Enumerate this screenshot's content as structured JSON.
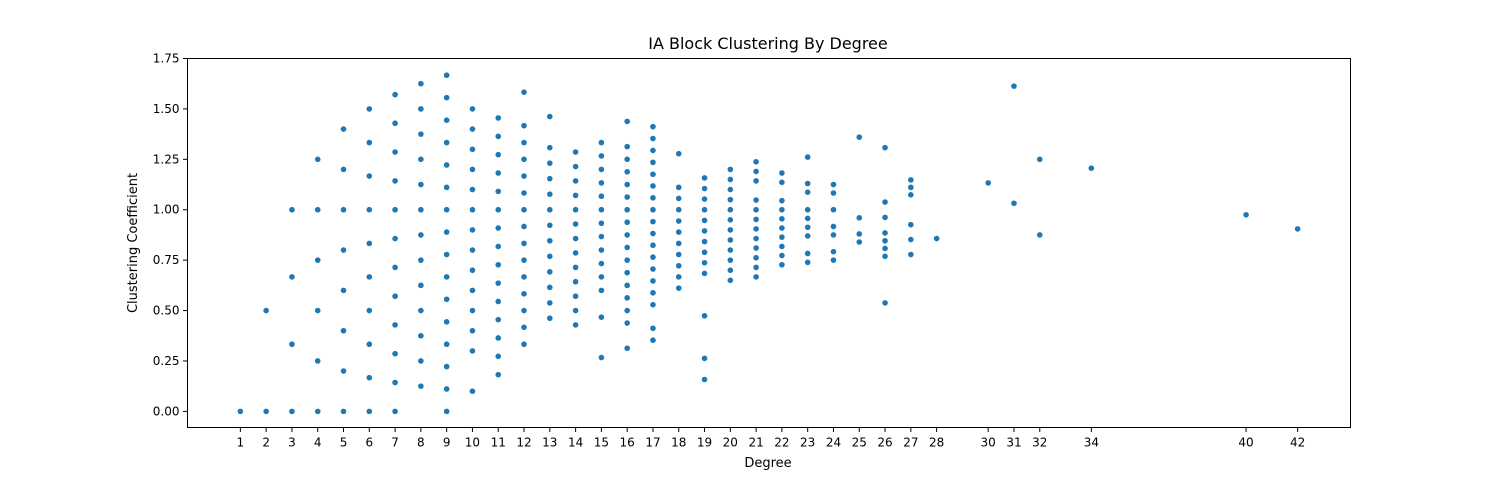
{
  "chart_data": {
    "type": "scatter",
    "title": "IA Block Clustering By Degree",
    "xlabel": "Degree",
    "ylabel": "Clustering Coefficient",
    "xlim": [
      -1.05,
      44.05
    ],
    "ylim": [
      -0.08,
      1.75
    ],
    "grid": false,
    "legend": "none",
    "color": "#1f77b4",
    "xticks": [
      "1",
      "2",
      "3",
      "4",
      "5",
      "6",
      "7",
      "8",
      "9",
      "10",
      "11",
      "12",
      "13",
      "14",
      "15",
      "16",
      "17",
      "18",
      "19",
      "20",
      "21",
      "22",
      "23",
      "24",
      "25",
      "26",
      "27",
      "28",
      "30",
      "31",
      "32",
      "34",
      "40",
      "42"
    ],
    "yticks": [
      "0.00",
      "0.25",
      "0.50",
      "0.75",
      "1.00",
      "1.25",
      "1.50",
      "1.75"
    ],
    "series": [
      {
        "points": [
          [
            1,
            0
          ],
          [
            2,
            0
          ],
          [
            2,
            0.5
          ],
          [
            3,
            0
          ],
          [
            3,
            0.333
          ],
          [
            3,
            0.667
          ],
          [
            3,
            1
          ],
          [
            4,
            0
          ],
          [
            4,
            0.25
          ],
          [
            4,
            0.5
          ],
          [
            4,
            0.75
          ],
          [
            4,
            1
          ],
          [
            4,
            1.25
          ],
          [
            5,
            0
          ],
          [
            5,
            0.2
          ],
          [
            5,
            0.4
          ],
          [
            5,
            0.6
          ],
          [
            5,
            0.8
          ],
          [
            5,
            1
          ],
          [
            5,
            1.2
          ],
          [
            5,
            1.4
          ],
          [
            6,
            0
          ],
          [
            6,
            0.167
          ],
          [
            6,
            0.333
          ],
          [
            6,
            0.5
          ],
          [
            6,
            0.667
          ],
          [
            6,
            0.833
          ],
          [
            6,
            1
          ],
          [
            6,
            1.167
          ],
          [
            6,
            1.333
          ],
          [
            6,
            1.5
          ],
          [
            7,
            0
          ],
          [
            7,
            0.143
          ],
          [
            7,
            0.286
          ],
          [
            7,
            0.429
          ],
          [
            7,
            0.571
          ],
          [
            7,
            0.714
          ],
          [
            7,
            0.857
          ],
          [
            7,
            1
          ],
          [
            7,
            1.143
          ],
          [
            7,
            1.286
          ],
          [
            7,
            1.429
          ],
          [
            7,
            1.571
          ],
          [
            8,
            0.125
          ],
          [
            8,
            0.25
          ],
          [
            8,
            0.375
          ],
          [
            8,
            0.5
          ],
          [
            8,
            0.625
          ],
          [
            8,
            0.75
          ],
          [
            8,
            0.875
          ],
          [
            8,
            1
          ],
          [
            8,
            1.125
          ],
          [
            8,
            1.25
          ],
          [
            8,
            1.375
          ],
          [
            8,
            1.5
          ],
          [
            8,
            1.625
          ],
          [
            9,
            0
          ],
          [
            9,
            0.111
          ],
          [
            9,
            0.222
          ],
          [
            9,
            0.333
          ],
          [
            9,
            0.444
          ],
          [
            9,
            0.556
          ],
          [
            9,
            0.667
          ],
          [
            9,
            0.778
          ],
          [
            9,
            0.889
          ],
          [
            9,
            1
          ],
          [
            9,
            1.111
          ],
          [
            9,
            1.222
          ],
          [
            9,
            1.333
          ],
          [
            9,
            1.444
          ],
          [
            9,
            1.556
          ],
          [
            9,
            1.667
          ],
          [
            10,
            0.1
          ],
          [
            10,
            0.3
          ],
          [
            10,
            0.4
          ],
          [
            10,
            0.5
          ],
          [
            10,
            0.6
          ],
          [
            10,
            0.7
          ],
          [
            10,
            0.8
          ],
          [
            10,
            0.9
          ],
          [
            10,
            1
          ],
          [
            10,
            1.1
          ],
          [
            10,
            1.2
          ],
          [
            10,
            1.3
          ],
          [
            10,
            1.4
          ],
          [
            10,
            1.5
          ],
          [
            11,
            0.182
          ],
          [
            11,
            0.273
          ],
          [
            11,
            0.364
          ],
          [
            11,
            0.455
          ],
          [
            11,
            0.545
          ],
          [
            11,
            0.636
          ],
          [
            11,
            0.727
          ],
          [
            11,
            0.818
          ],
          [
            11,
            0.909
          ],
          [
            11,
            1
          ],
          [
            11,
            1.091
          ],
          [
            11,
            1.182
          ],
          [
            11,
            1.273
          ],
          [
            11,
            1.364
          ],
          [
            11,
            1.455
          ],
          [
            12,
            0.333
          ],
          [
            12,
            0.417
          ],
          [
            12,
            0.5
          ],
          [
            12,
            0.583
          ],
          [
            12,
            0.667
          ],
          [
            12,
            0.75
          ],
          [
            12,
            0.833
          ],
          [
            12,
            0.917
          ],
          [
            12,
            1
          ],
          [
            12,
            1.083
          ],
          [
            12,
            1.167
          ],
          [
            12,
            1.25
          ],
          [
            12,
            1.333
          ],
          [
            12,
            1.417
          ],
          [
            12,
            1.583
          ],
          [
            13,
            0.462
          ],
          [
            13,
            0.538
          ],
          [
            13,
            0.615
          ],
          [
            13,
            0.692
          ],
          [
            13,
            0.769
          ],
          [
            13,
            0.846
          ],
          [
            13,
            0.923
          ],
          [
            13,
            1
          ],
          [
            13,
            1.077
          ],
          [
            13,
            1.154
          ],
          [
            13,
            1.231
          ],
          [
            13,
            1.308
          ],
          [
            13,
            1.462
          ],
          [
            14,
            0.429
          ],
          [
            14,
            0.5
          ],
          [
            14,
            0.571
          ],
          [
            14,
            0.643
          ],
          [
            14,
            0.714
          ],
          [
            14,
            0.786
          ],
          [
            14,
            0.857
          ],
          [
            14,
            0.929
          ],
          [
            14,
            1
          ],
          [
            14,
            1.071
          ],
          [
            14,
            1.143
          ],
          [
            14,
            1.214
          ],
          [
            14,
            1.286
          ],
          [
            15,
            0.267
          ],
          [
            15,
            0.467
          ],
          [
            15,
            0.6
          ],
          [
            15,
            0.667
          ],
          [
            15,
            0.733
          ],
          [
            15,
            0.8
          ],
          [
            15,
            0.867
          ],
          [
            15,
            0.933
          ],
          [
            15,
            1
          ],
          [
            15,
            1.067
          ],
          [
            15,
            1.133
          ],
          [
            15,
            1.2
          ],
          [
            15,
            1.267
          ],
          [
            15,
            1.333
          ],
          [
            16,
            0.313
          ],
          [
            16,
            0.438
          ],
          [
            16,
            0.5
          ],
          [
            16,
            0.563
          ],
          [
            16,
            0.625
          ],
          [
            16,
            0.688
          ],
          [
            16,
            0.75
          ],
          [
            16,
            0.813
          ],
          [
            16,
            0.875
          ],
          [
            16,
            0.938
          ],
          [
            16,
            1
          ],
          [
            16,
            1.063
          ],
          [
            16,
            1.125
          ],
          [
            16,
            1.188
          ],
          [
            16,
            1.25
          ],
          [
            16,
            1.313
          ],
          [
            16,
            1.438
          ],
          [
            17,
            0.353
          ],
          [
            17,
            0.412
          ],
          [
            17,
            0.529
          ],
          [
            17,
            0.588
          ],
          [
            17,
            0.647
          ],
          [
            17,
            0.706
          ],
          [
            17,
            0.765
          ],
          [
            17,
            0.824
          ],
          [
            17,
            0.882
          ],
          [
            17,
            0.941
          ],
          [
            17,
            1
          ],
          [
            17,
            1.059
          ],
          [
            17,
            1.118
          ],
          [
            17,
            1.176
          ],
          [
            17,
            1.235
          ],
          [
            17,
            1.294
          ],
          [
            17,
            1.353
          ],
          [
            17,
            1.412
          ],
          [
            18,
            0.611
          ],
          [
            18,
            0.667
          ],
          [
            18,
            0.722
          ],
          [
            18,
            0.778
          ],
          [
            18,
            0.833
          ],
          [
            18,
            0.889
          ],
          [
            18,
            0.944
          ],
          [
            18,
            1
          ],
          [
            18,
            1.056
          ],
          [
            18,
            1.111
          ],
          [
            18,
            1.278
          ],
          [
            19,
            0.158
          ],
          [
            19,
            0.263
          ],
          [
            19,
            0.474
          ],
          [
            19,
            0.684
          ],
          [
            19,
            0.737
          ],
          [
            19,
            0.789
          ],
          [
            19,
            0.842
          ],
          [
            19,
            0.895
          ],
          [
            19,
            0.947
          ],
          [
            19,
            1
          ],
          [
            19,
            1.053
          ],
          [
            19,
            1.105
          ],
          [
            19,
            1.158
          ],
          [
            20,
            0.65
          ],
          [
            20,
            0.7
          ],
          [
            20,
            0.75
          ],
          [
            20,
            0.8
          ],
          [
            20,
            0.85
          ],
          [
            20,
            0.9
          ],
          [
            20,
            0.95
          ],
          [
            20,
            1
          ],
          [
            20,
            1.05
          ],
          [
            20,
            1.1
          ],
          [
            20,
            1.15
          ],
          [
            20,
            1.2
          ],
          [
            21,
            0.667
          ],
          [
            21,
            0.714
          ],
          [
            21,
            0.762
          ],
          [
            21,
            0.81
          ],
          [
            21,
            0.857
          ],
          [
            21,
            0.905
          ],
          [
            21,
            0.952
          ],
          [
            21,
            1
          ],
          [
            21,
            1.048
          ],
          [
            21,
            1.143
          ],
          [
            21,
            1.19
          ],
          [
            21,
            1.238
          ],
          [
            22,
            0.727
          ],
          [
            22,
            0.773
          ],
          [
            22,
            0.818
          ],
          [
            22,
            0.864
          ],
          [
            22,
            0.909
          ],
          [
            22,
            0.955
          ],
          [
            22,
            1
          ],
          [
            22,
            1.045
          ],
          [
            22,
            1.136
          ],
          [
            22,
            1.182
          ],
          [
            23,
            0.739
          ],
          [
            23,
            0.783
          ],
          [
            23,
            0.87
          ],
          [
            23,
            0.913
          ],
          [
            23,
            0.957
          ],
          [
            23,
            1
          ],
          [
            23,
            1.087
          ],
          [
            23,
            1.13
          ],
          [
            23,
            1.261
          ],
          [
            24,
            0.75
          ],
          [
            24,
            0.792
          ],
          [
            24,
            0.875
          ],
          [
            24,
            0.917
          ],
          [
            24,
            1
          ],
          [
            24,
            1.083
          ],
          [
            24,
            1.125
          ],
          [
            25,
            0.84
          ],
          [
            25,
            0.88
          ],
          [
            25,
            0.96
          ],
          [
            25,
            1.36
          ],
          [
            26,
            0.538
          ],
          [
            26,
            0.769
          ],
          [
            26,
            0.808
          ],
          [
            26,
            0.846
          ],
          [
            26,
            0.885
          ],
          [
            26,
            0.962
          ],
          [
            26,
            1.038
          ],
          [
            26,
            1.308
          ],
          [
            27,
            0.778
          ],
          [
            27,
            0.852
          ],
          [
            27,
            0.926
          ],
          [
            27,
            1.074
          ],
          [
            27,
            1.111
          ],
          [
            27,
            1.148
          ],
          [
            28,
            0.857
          ],
          [
            30,
            1.133
          ],
          [
            31,
            1.032
          ],
          [
            31,
            1.613
          ],
          [
            32,
            0.875
          ],
          [
            32,
            1.25
          ],
          [
            34,
            1.206
          ],
          [
            40,
            0.975
          ],
          [
            42,
            0.905
          ]
        ]
      }
    ]
  }
}
